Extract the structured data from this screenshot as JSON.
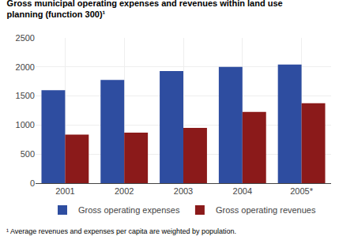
{
  "chart_data": {
    "type": "bar",
    "title": "Gross municipal operating expenses and revenues within land use\nplanning (function 300)¹",
    "annotations": [
      "¹ Average revenues and expenses per capita are weighted by population."
    ],
    "categories": [
      "2001",
      "2002",
      "2003",
      "2004",
      "2005*"
    ],
    "series": [
      {
        "name": "Gross operating expenses",
        "color": "#2E4DA0",
        "values": [
          1600,
          1775,
          1930,
          2000,
          2040
        ]
      },
      {
        "name": "Gross operating revenues",
        "color": "#8B1A1A",
        "values": [
          835,
          870,
          950,
          1225,
          1375
        ]
      }
    ],
    "ylim": [
      0,
      2500
    ],
    "yticks": [
      0,
      500,
      1000,
      1500,
      2000,
      2500
    ],
    "grid": true,
    "legend": "bottom"
  }
}
